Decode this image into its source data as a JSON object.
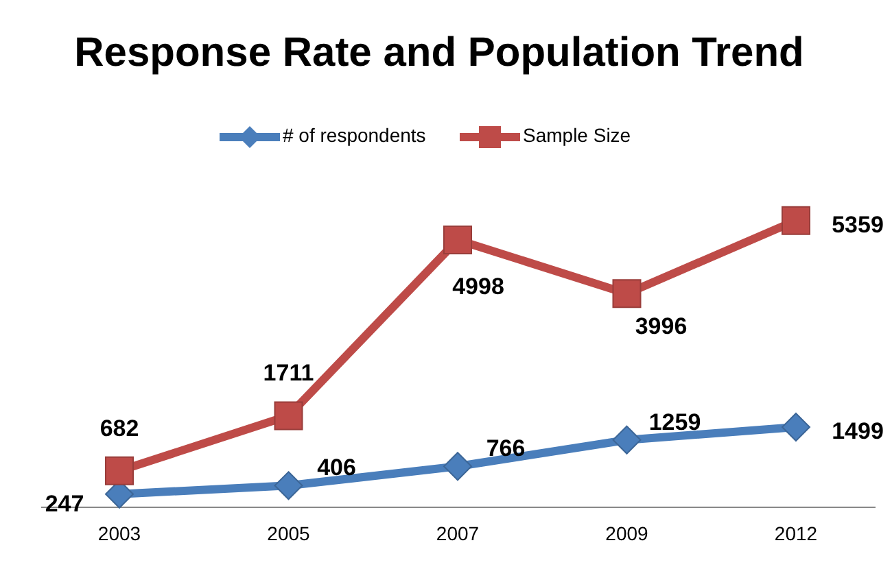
{
  "chart_data": {
    "type": "line",
    "title": "Response Rate and Population Trend",
    "categories": [
      "2003",
      "2005",
      "2007",
      "2009",
      "2012"
    ],
    "series": [
      {
        "name": "# of respondents",
        "color": "#4a7ebb",
        "values": [
          247,
          406,
          766,
          1259,
          1499
        ],
        "marker": "diamond"
      },
      {
        "name": "Sample Size",
        "color": "#be4b48",
        "values": [
          682,
          1711,
          4998,
          3996,
          5359
        ],
        "marker": "square"
      }
    ],
    "data_labels": true,
    "legend": "top",
    "line_style": "solid"
  }
}
